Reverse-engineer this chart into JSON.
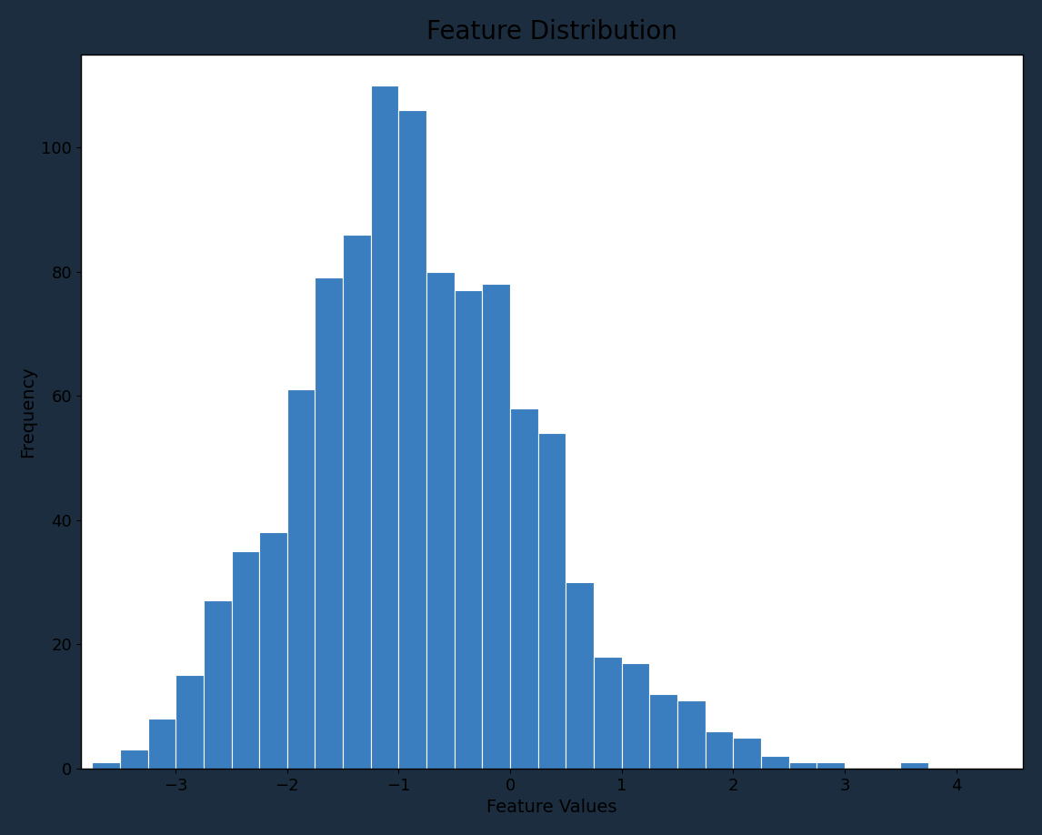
{
  "title": "Feature Distribution",
  "xlabel": "Feature Values",
  "ylabel": "Frequency",
  "bar_color": "#3a7ebf",
  "edge_color": "#ffffff",
  "background_color": "#ffffff",
  "outer_background": "#1c2d3f",
  "frequencies": [
    1,
    3,
    8,
    15,
    27,
    35,
    38,
    61,
    79,
    86,
    110,
    106,
    80,
    77,
    78,
    58,
    54,
    30,
    18,
    17,
    12,
    11,
    6,
    5,
    2,
    1,
    1,
    0,
    0,
    1
  ],
  "bin_start": -3.75,
  "bin_width": 0.25,
  "xlim": [
    -3.85,
    4.6
  ],
  "ylim": [
    0,
    115
  ],
  "xticks": [
    -3,
    -2,
    -1,
    0,
    1,
    2,
    3,
    4
  ],
  "title_fontsize": 20,
  "label_fontsize": 14,
  "tick_fontsize": 13,
  "figsize": [
    11.46,
    9.18
  ],
  "dpi": 100
}
